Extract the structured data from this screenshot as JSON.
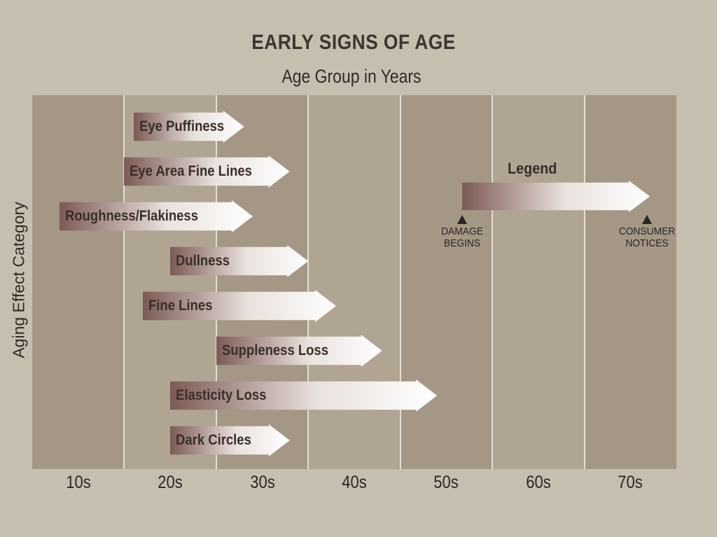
{
  "colors": {
    "background": "#c6bfb0",
    "plot_band_dark": "#a49786",
    "plot_band_light": "#b0a493",
    "gridline": "#e4ded3",
    "arrow_start": "#7c5a55",
    "arrow_end": "#ffffff"
  },
  "chart_data": {
    "type": "bar",
    "orientation": "horizontal range (floating arrows)",
    "title": "EARLY SIGNS OF AGE",
    "subtitle": "Age Group in Years",
    "ylabel": "Aging Effect Category",
    "x_categories": [
      "10s",
      "20s",
      "30s",
      "40s",
      "50s",
      "60s",
      "70s"
    ],
    "x_unit": "age in years (estimated from axis)",
    "xlim": [
      5,
      75
    ],
    "grid": "vertical lines between decades",
    "series": [
      {
        "label": "Eye Puffiness",
        "damage_begins": 16,
        "consumer_notices": 28
      },
      {
        "label": "Eye Area Fine Lines",
        "damage_begins": 15,
        "consumer_notices": 33
      },
      {
        "label": "Roughness/Flakiness",
        "damage_begins": 8,
        "consumer_notices": 29
      },
      {
        "label": "Dullness",
        "damage_begins": 20,
        "consumer_notices": 35
      },
      {
        "label": "Fine Lines",
        "damage_begins": 17,
        "consumer_notices": 38
      },
      {
        "label": "Suppleness Loss",
        "damage_begins": 25,
        "consumer_notices": 43
      },
      {
        "label": "Elasticity Loss",
        "damage_begins": 20,
        "consumer_notices": 49
      },
      {
        "label": "Dark Circles",
        "damage_begins": 20,
        "consumer_notices": 33
      }
    ],
    "legend": {
      "title": "Legend",
      "start_label": "DAMAGE BEGINS",
      "end_label": "CONSUMER NOTICES",
      "placement": "top-right"
    }
  }
}
